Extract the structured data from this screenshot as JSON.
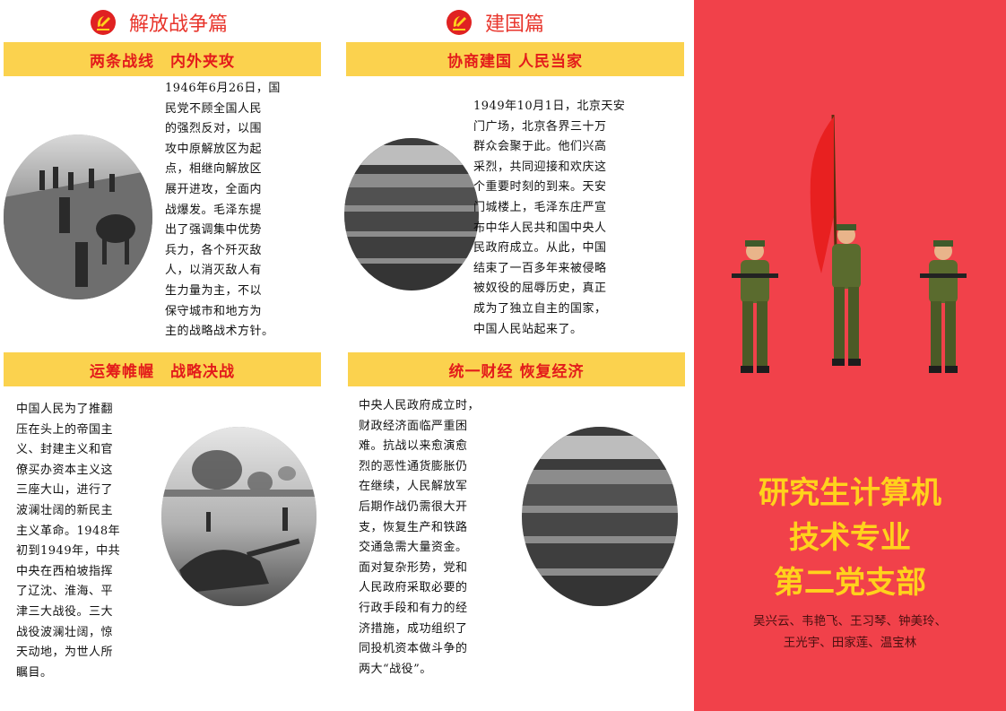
{
  "left_column": {
    "title": "解放战争篇",
    "section1": {
      "heading": "两条战线　内外夹攻",
      "text_lines": [
        "1946年6月26日，国",
        "民党不顾全国人民",
        "的强烈反对，以围",
        "攻中原解放区为起",
        "点，相继向解放区",
        "展开进攻，全面内",
        "战爆发。毛泽东提",
        "出了强调集中优势",
        "兵力，各个歼灭敌",
        "人，以消灭敌人有",
        "生力量为主，不以",
        "保守城市和地方为",
        "主的战略战术方针。"
      ]
    },
    "section2": {
      "heading": "运筹帷幄　战略决战",
      "text_lines": [
        "中国人民为了推翻",
        "压在头上的帝国主",
        "义、封建主义和官",
        "僚买办资本主义这",
        "三座大山，进行了",
        "波澜壮阔的新民主",
        "主义革命。1948年",
        "初到1949年，中共",
        "中央在西柏坡指挥",
        "了辽沈、淮海、平",
        "津三大战役。三大",
        "战役波澜壮阔，惊",
        "天动地，为世人所",
        "瞩目。"
      ]
    }
  },
  "middle_column": {
    "title": "建国篇",
    "section1": {
      "heading": "协商建国 人民当家",
      "text_lines": [
        "1949年10月1日，北京天安",
        "门广场，北京各界三十万",
        "群众会聚于此。他们兴高",
        "采烈，共同迎接和欢庆这",
        "个重要时刻的到来。天安",
        "门城楼上，毛泽东庄严宣",
        "布中华人民共和国中央人",
        "民政府成立。从此，中国",
        "结束了一百多年来被侵略",
        "被奴役的屈辱历史，真正",
        "成为了独立自主的国家，",
        "中国人民站起来了。"
      ]
    },
    "section2": {
      "heading": "统一财经 恢复经济",
      "text_lines": [
        "中央人民政府成立时，",
        "财政经济面临严重困",
        "难。抗战以来愈演愈",
        "烈的恶性通货膨胀仍",
        "在继续，人民解放军",
        "后期作战仍需很大开",
        "支，恢复生产和铁路",
        "交通急需大量资金。",
        "面对复杂形势，党和",
        "人民政府采取必要的",
        "行政手段和有力的经",
        "济措施，成功组织了",
        "同投机资本做斗争的",
        "两大“战役”。"
      ]
    }
  },
  "cover": {
    "title_lines": [
      "研究生计算机",
      "技术专业",
      "第二党支部"
    ],
    "member_lines": [
      "吴兴云、韦艳飞、王习琴、钟美玲、",
      "王光宇、田家莲、温宝林"
    ]
  },
  "colors": {
    "band": "#fbd24e",
    "heading_red": "#e31b1b",
    "panel_red": "#f1414a",
    "cover_title": "#ffd21c",
    "flag_red": "#e82020"
  },
  "icons": [
    "party-emblem-icon",
    "party-emblem-icon"
  ]
}
